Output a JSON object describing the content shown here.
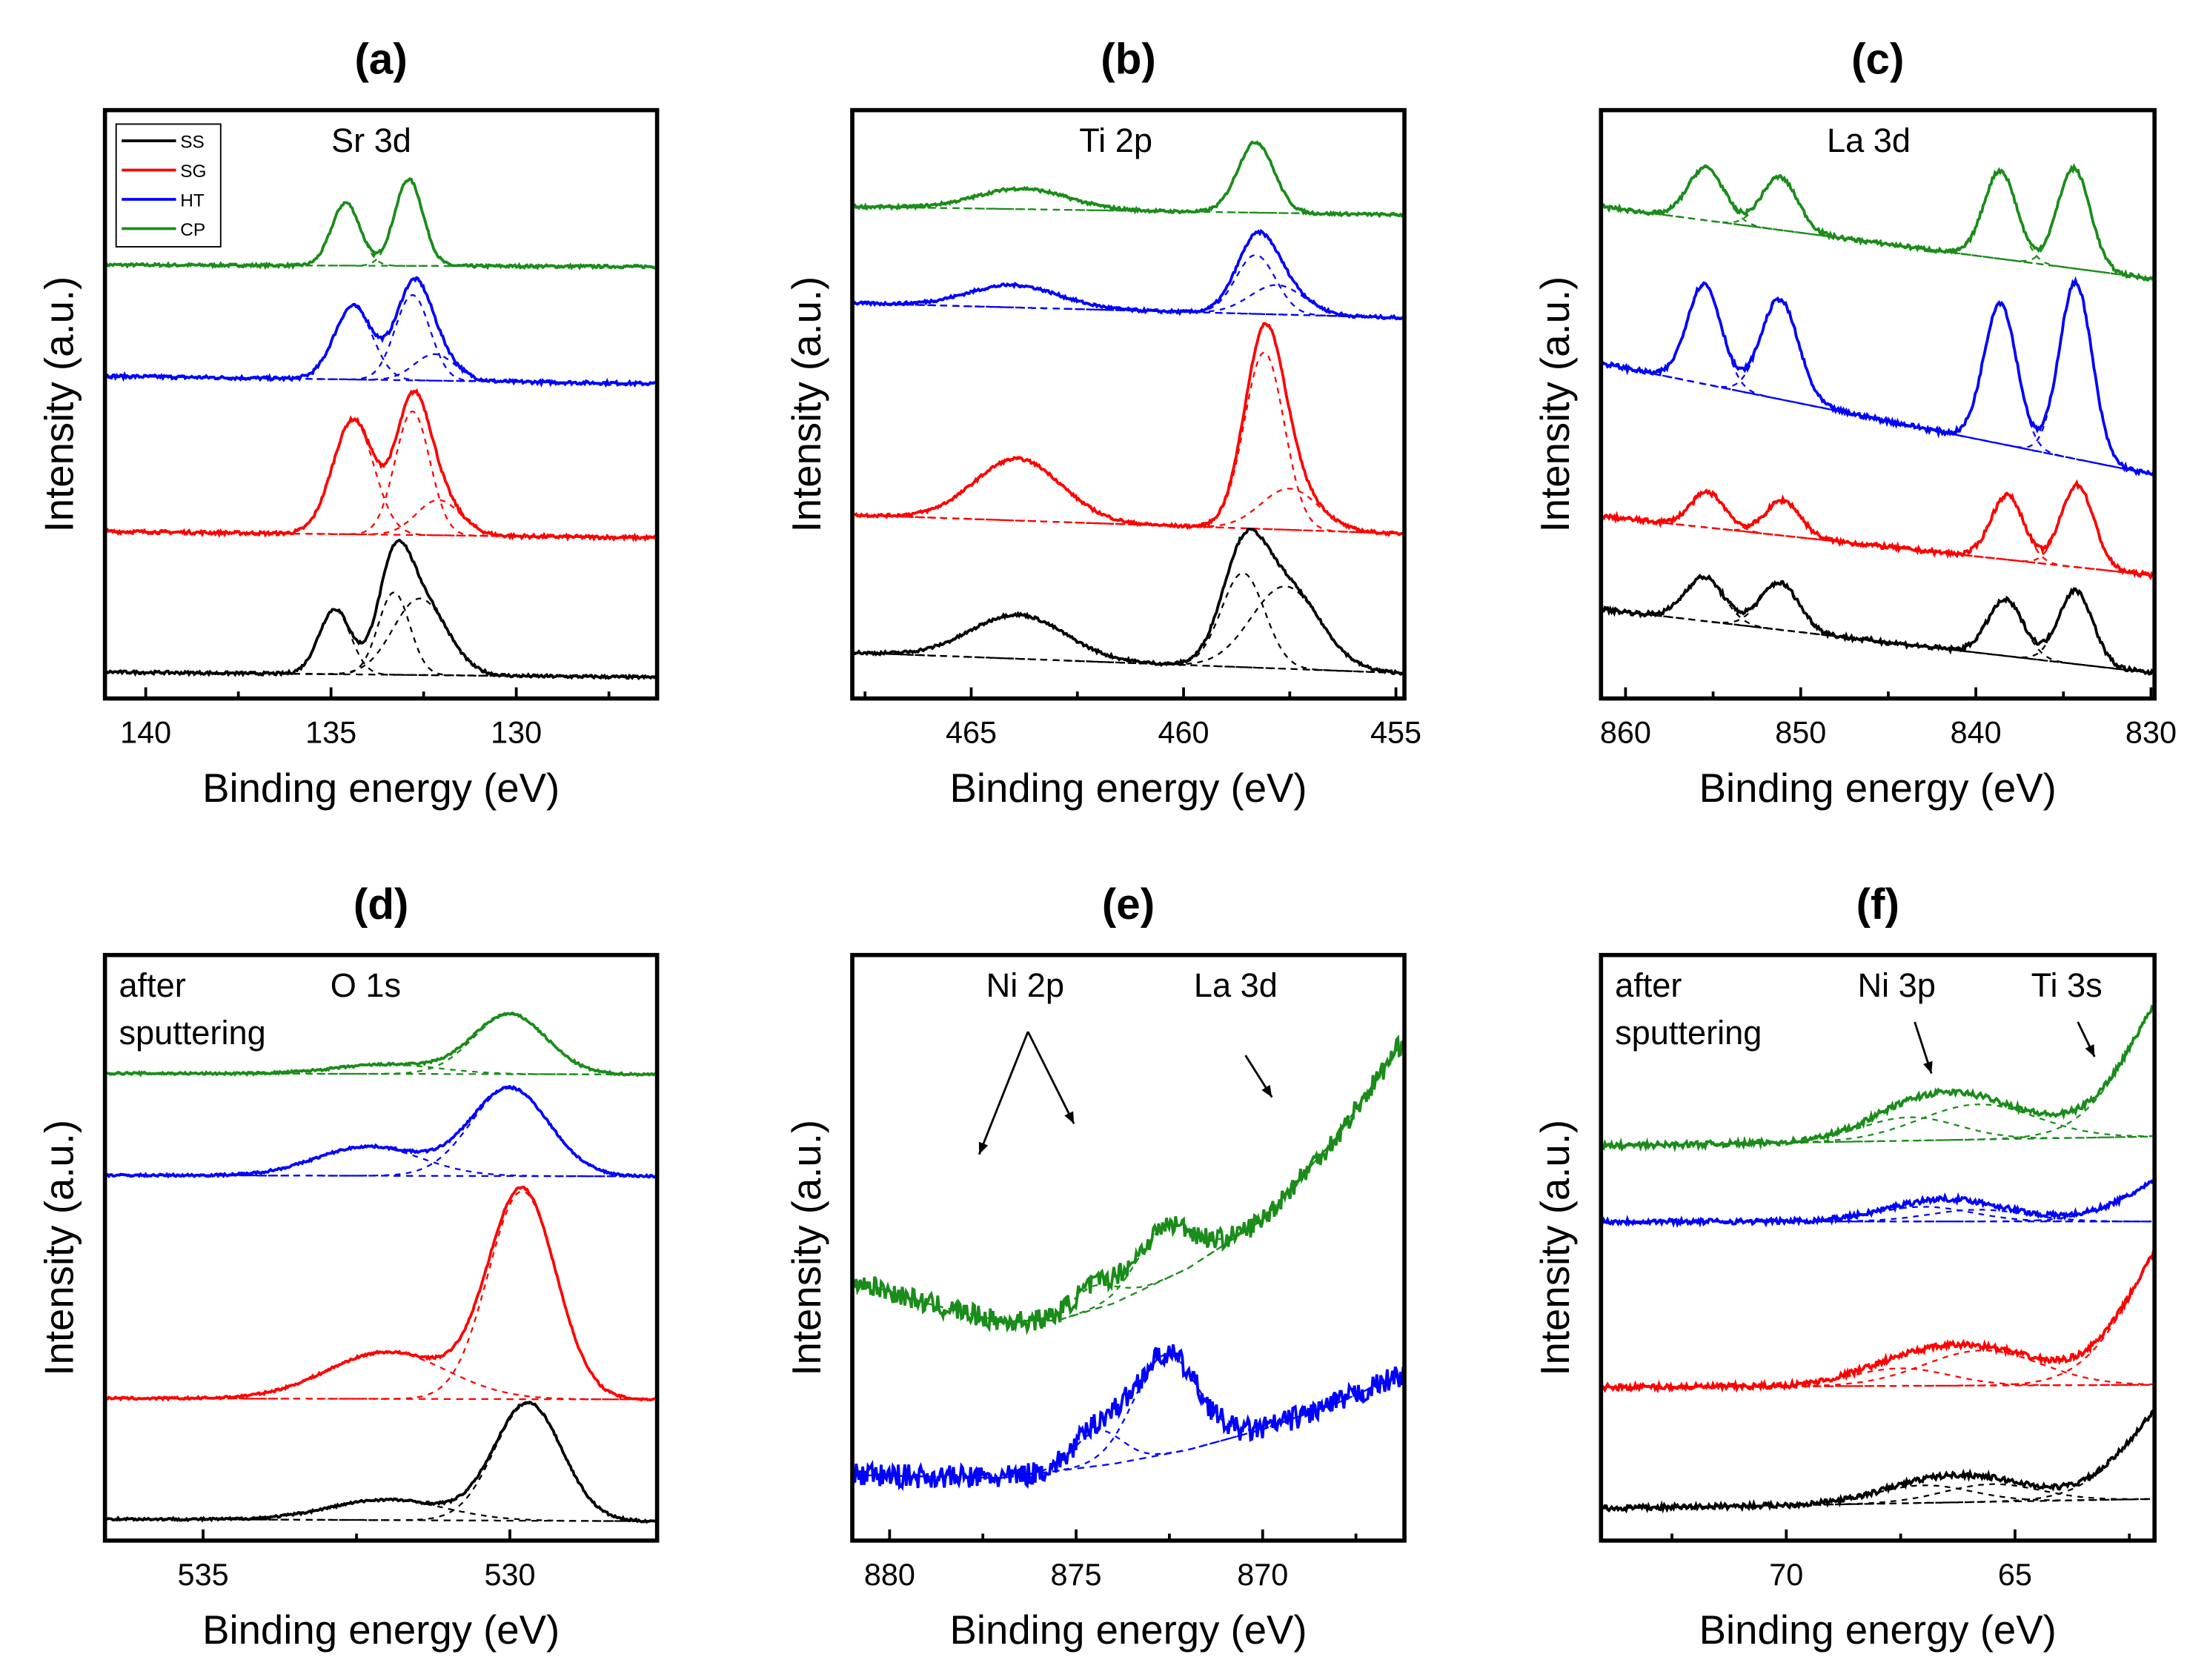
{
  "chart_data": [
    {
      "type": "line",
      "panel": "(a)",
      "xlabel": "Binding energy (eV)",
      "ylabel": "Intensity (a.u.)",
      "xlim": [
        141.1,
        126.2
      ],
      "ylim": [
        0,
        100
      ],
      "xticks": [
        140,
        135,
        130
      ],
      "minor_step": 2.5,
      "legend": {
        "placement": "top-left",
        "entries": [
          "SS",
          "SG",
          "HT",
          "CP"
        ]
      },
      "annotations": [
        "Sr 3d"
      ],
      "series": [
        {
          "name": "CP",
          "color": "#1a8c1a",
          "noise": 0.25,
          "baseline": [
            [
              141.1,
              73.7
            ],
            [
              126.2,
              73.4
            ]
          ],
          "peaks": [
            [
              134.6,
              10.7,
              0.9
            ],
            [
              132.9,
              14.7,
              0.9
            ]
          ]
        },
        {
          "name": "HT",
          "color": "#0000ff",
          "noise": 0.3,
          "baseline": [
            [
              141.1,
              54.8
            ],
            [
              126.2,
              53.5
            ]
          ],
          "peaks": [
            [
              134.4,
              12.5,
              1.2
            ],
            [
              132.8,
              14.5,
              1.1
            ],
            [
              132.2,
              4.5,
              1.3
            ]
          ]
        },
        {
          "name": "SG",
          "color": "#ff0000",
          "noise": 0.3,
          "baseline": [
            [
              141.1,
              28.4
            ],
            [
              126.2,
              27.3
            ]
          ],
          "peaks": [
            [
              134.4,
              19.5,
              1.3
            ],
            [
              132.8,
              21,
              1.1
            ],
            [
              132.1,
              6,
              1.4
            ]
          ]
        },
        {
          "name": "SS",
          "color": "#000000",
          "noise": 0.25,
          "baseline": [
            [
              141.1,
              4.5
            ],
            [
              126.2,
              3.6
            ]
          ],
          "peaks": [
            [
              134.9,
              11,
              1.0
            ],
            [
              133.3,
              14,
              1.0
            ],
            [
              132.6,
              13,
              1.7
            ]
          ]
        }
      ]
    },
    {
      "type": "line",
      "panel": "(b)",
      "xlabel": "Binding energy (eV)",
      "ylabel": "Intensity (a.u.)",
      "xlim": [
        467.8,
        454.8
      ],
      "ylim": [
        0,
        100
      ],
      "xticks": [
        465,
        460,
        455
      ],
      "minor_step": 2.5,
      "annotations": [
        "Ti 2p"
      ],
      "series": [
        {
          "name": "CP",
          "color": "#1a8c1a",
          "noise": 0.25,
          "baseline": [
            [
              467.8,
              83.6
            ],
            [
              454.8,
              82.2
            ]
          ],
          "peaks": [
            [
              463.8,
              3.5,
              2.5
            ],
            [
              458.3,
              12,
              1.0
            ]
          ]
        },
        {
          "name": "HT",
          "color": "#0000ff",
          "noise": 0.25,
          "baseline": [
            [
              467.8,
              67.2
            ],
            [
              454.8,
              64.7
            ]
          ],
          "peaks": [
            [
              464.0,
              3.8,
              2.5
            ],
            [
              458.3,
              10,
              1.1
            ],
            [
              457.8,
              5,
              1.5
            ]
          ]
        },
        {
          "name": "SG",
          "color": "#ff0000",
          "noise": 0.25,
          "baseline": [
            [
              467.8,
              31.2
            ],
            [
              454.8,
              28
            ]
          ],
          "peaks": [
            [
              463.9,
              10.5,
              2.4
            ],
            [
              458.1,
              30,
              1.1
            ],
            [
              457.5,
              7,
              1.6
            ]
          ]
        },
        {
          "name": "SS",
          "color": "#000000",
          "noise": 0.25,
          "baseline": [
            [
              467.8,
              7.8
            ],
            [
              454.8,
              4.3
            ]
          ],
          "peaks": [
            [
              463.9,
              7.5,
              2.6
            ],
            [
              458.6,
              16,
              1.2
            ],
            [
              457.6,
              14,
              1.9
            ]
          ]
        }
      ]
    },
    {
      "type": "line",
      "panel": "(c)",
      "xlabel": "Binding energy (eV)",
      "ylabel": "Intensity (a.u.)",
      "xlim": [
        861.4,
        829.8
      ],
      "ylim": [
        0,
        100
      ],
      "xticks": [
        860,
        850,
        840,
        830
      ],
      "minor_step": 5,
      "annotations": [
        "La 3d"
      ],
      "series": [
        {
          "name": "CP",
          "color": "#1a8c1a",
          "noise": 0.35,
          "baseline": [
            [
              861.4,
              83.6
            ],
            [
              829.8,
              71.3
            ]
          ],
          "peaks": [
            [
              855.4,
              9,
              2.4
            ],
            [
              851.2,
              9,
              2.4
            ],
            [
              838.6,
              15,
              2.2
            ],
            [
              834.4,
              17,
              2.2
            ]
          ]
        },
        {
          "name": "HT",
          "color": "#0000ff",
          "noise": 0.4,
          "baseline": [
            [
              861.4,
              57
            ],
            [
              829.8,
              38
            ]
          ],
          "peaks": [
            [
              855.5,
              17,
              2.3
            ],
            [
              851.2,
              17,
              2.5
            ],
            [
              838.6,
              24,
              2.2
            ],
            [
              834.3,
              30,
              2.2
            ]
          ]
        },
        {
          "name": "SG",
          "color": "#ff0000",
          "noise": 0.4,
          "baseline": [
            [
              861.4,
              31
            ],
            [
              829.8,
              20.9
            ]
          ],
          "peaks": [
            [
              855.3,
              6,
              2.3
            ],
            [
              851.0,
              6,
              2.3
            ],
            [
              838.2,
              11,
              2.2
            ],
            [
              834.2,
              14,
              2.2
            ]
          ]
        },
        {
          "name": "SS",
          "color": "#000000",
          "noise": 0.4,
          "baseline": [
            [
              861.4,
              15.2
            ],
            [
              829.8,
              4.3
            ]
          ],
          "peaks": [
            [
              855.5,
              7.5,
              2.6
            ],
            [
              851.2,
              8,
              2.6
            ],
            [
              838.3,
              9.5,
              2.4
            ],
            [
              834.3,
              12.5,
              2.3
            ]
          ]
        }
      ]
    },
    {
      "type": "line",
      "panel": "(d)",
      "xlabel": "Binding energy (eV)",
      "ylabel": "Intensity (a.u.)",
      "xlim": [
        536.6,
        527.6
      ],
      "ylim": [
        0,
        100
      ],
      "xticks": [
        535,
        530
      ],
      "minor_step": 2.5,
      "annotations": [
        "after",
        "sputtering",
        "O 1s"
      ],
      "series": [
        {
          "name": "CP",
          "color": "#1a8c1a",
          "noise": 0.2,
          "baseline": [
            [
              536.6,
              79.8
            ],
            [
              527.6,
              79.6
            ]
          ],
          "peaks": [
            [
              530.0,
              10.2,
              1.4
            ],
            [
              532.0,
              1.6,
              2.0
            ]
          ]
        },
        {
          "name": "HT",
          "color": "#0000ff",
          "noise": 0.2,
          "baseline": [
            [
              536.6,
              62.4
            ],
            [
              527.6,
              62.2
            ]
          ],
          "peaks": [
            [
              530.0,
              15,
              1.5
            ],
            [
              532.3,
              5,
              2.0
            ]
          ]
        },
        {
          "name": "SG",
          "color": "#ff0000",
          "noise": 0.2,
          "baseline": [
            [
              536.6,
              24.3
            ],
            [
              527.6,
              24.1
            ]
          ],
          "peaks": [
            [
              529.8,
              35.5,
              1.3
            ],
            [
              532.0,
              8,
              2.3
            ]
          ]
        },
        {
          "name": "SS",
          "color": "#000000",
          "noise": 0.2,
          "baseline": [
            [
              536.6,
              3.7
            ],
            [
              527.6,
              3.3
            ]
          ],
          "peaks": [
            [
              529.7,
              20,
              1.3
            ],
            [
              532.0,
              3.5,
              2.2
            ]
          ]
        }
      ]
    },
    {
      "type": "line",
      "panel": "(e)",
      "xlabel": "Binding energy (eV)",
      "ylabel": "Intensity (a.u.)",
      "xlim": [
        881,
        866.2
      ],
      "ylim": [
        0,
        100
      ],
      "xticks": [
        880,
        875,
        870
      ],
      "minor_step": 2.5,
      "annotations": [
        "Ni 2p",
        "La 3d"
      ],
      "series": [
        {
          "name": "CP",
          "color": "#1a8c1a",
          "noise": 1.8,
          "baseline": [
            [
              881,
              44.5
            ],
            [
              879,
              40.5
            ],
            [
              877,
              37.4
            ],
            [
              875.5,
              37.6
            ],
            [
              874,
              40.5
            ],
            [
              872,
              46.5
            ],
            [
              870,
              54.8
            ],
            [
              868,
              69
            ],
            [
              866.2,
              85.7
            ]
          ],
          "peaks": [
            [
              874.5,
              4,
              1.5
            ],
            [
              872.6,
              9,
              1.8
            ]
          ]
        },
        {
          "name": "HT",
          "color": "#0000ff",
          "noise": 2.0,
          "baseline": [
            [
              881,
              11.2
            ],
            [
              877,
              10.7
            ],
            [
              874,
              13.1
            ],
            [
              872,
              15.5
            ],
            [
              870,
              19
            ],
            [
              868,
              23.5
            ],
            [
              866.2,
              28.6
            ]
          ],
          "peaks": [
            [
              874.4,
              6,
              1.5
            ],
            [
              872.6,
              17,
              2.0
            ]
          ]
        }
      ]
    },
    {
      "type": "line",
      "panel": "(f)",
      "xlabel": "Binding energy (eV)",
      "ylabel": "Intensity (a.u.)",
      "xlim": [
        74.05,
        61.95
      ],
      "ylim": [
        0,
        100
      ],
      "xticks": [
        70,
        65
      ],
      "minor_step": 2.5,
      "annotations": [
        "after",
        "sputtering",
        "Ni 3p",
        "Ti 3s"
      ],
      "series": [
        {
          "name": "CP",
          "color": "#1a8c1a",
          "noise": 0.5,
          "baseline": [
            [
              74.05,
              67.4
            ],
            [
              61.95,
              69
            ]
          ],
          "peaks": [
            [
              67.3,
              4,
              2.5
            ],
            [
              65.8,
              6,
              3.0
            ],
            [
              61.0,
              30,
              3.0
            ]
          ]
        },
        {
          "name": "HT",
          "color": "#0000ff",
          "noise": 0.45,
          "baseline": [
            [
              74.05,
              54.5
            ],
            [
              61.95,
              54.5
            ]
          ],
          "peaks": [
            [
              67.0,
              2.5,
              2.5
            ],
            [
              65.8,
              2,
              2.5
            ],
            [
              61.0,
              9,
              3.0
            ]
          ]
        },
        {
          "name": "SG",
          "color": "#ff0000",
          "noise": 0.5,
          "baseline": [
            [
              74.05,
              26.2
            ],
            [
              61.95,
              26.6
            ]
          ],
          "peaks": [
            [
              67.5,
              3,
              2.5
            ],
            [
              65.7,
              6,
              3.0
            ],
            [
              61.0,
              30,
              3.0
            ]
          ]
        },
        {
          "name": "SS",
          "color": "#000000",
          "noise": 0.45,
          "baseline": [
            [
              74.05,
              5.5
            ],
            [
              61.95,
              7.1
            ]
          ],
          "peaks": [
            [
              67.0,
              3,
              2.5
            ],
            [
              65.5,
              3,
              2.5
            ],
            [
              61.0,
              20,
              3.0
            ]
          ]
        }
      ]
    }
  ]
}
